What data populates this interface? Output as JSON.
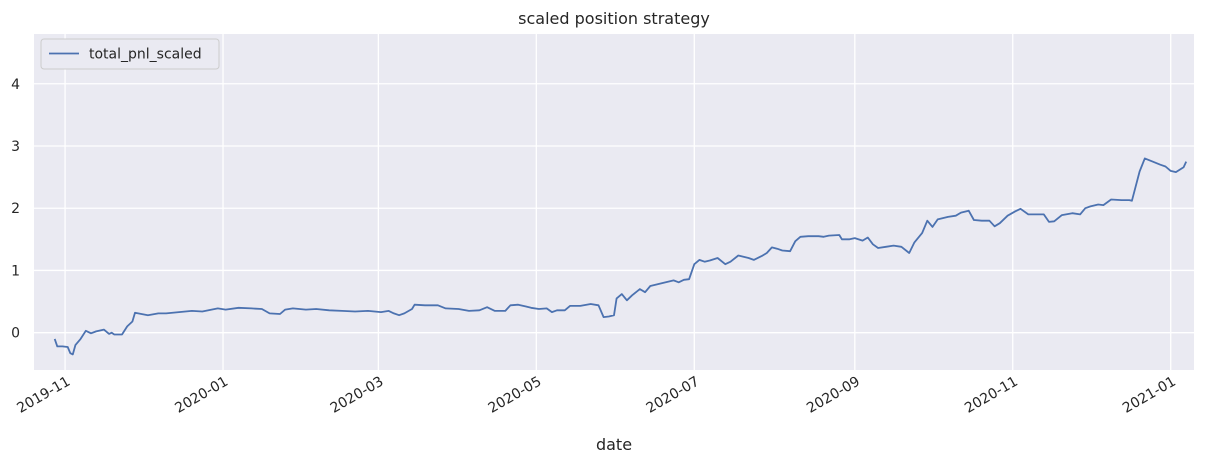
{
  "chart_data": {
    "type": "line",
    "title": "scaled position strategy",
    "xlabel": "date",
    "ylabel": "",
    "xlim": [
      "2019-10-20",
      "2021-01-10"
    ],
    "ylim": [
      -0.6,
      4.8
    ],
    "grid": true,
    "legend_position": "top-left",
    "x_ticks": [
      {
        "date": "2019-11-01",
        "label": "2019-11"
      },
      {
        "date": "2020-01-01",
        "label": "2020-01"
      },
      {
        "date": "2020-03-01",
        "label": "2020-03"
      },
      {
        "date": "2020-05-01",
        "label": "2020-05"
      },
      {
        "date": "2020-07-01",
        "label": "2020-07"
      },
      {
        "date": "2020-09-01",
        "label": "2020-09"
      },
      {
        "date": "2020-11-01",
        "label": "2020-11"
      },
      {
        "date": "2021-01-01",
        "label": "2021-01"
      }
    ],
    "y_ticks": [
      0,
      1,
      2,
      3,
      4
    ],
    "series": [
      {
        "name": "total_pnl_scaled",
        "color": "#4c72b0",
        "points": [
          [
            "2019-10-28",
            -0.1
          ],
          [
            "2019-10-29",
            -0.22
          ],
          [
            "2019-10-31",
            -0.22
          ],
          [
            "2019-11-02",
            -0.23
          ],
          [
            "2019-11-03",
            -0.33
          ],
          [
            "2019-11-04",
            -0.35
          ],
          [
            "2019-11-05",
            -0.2
          ],
          [
            "2019-11-07",
            -0.1
          ],
          [
            "2019-11-09",
            0.03
          ],
          [
            "2019-11-11",
            -0.01
          ],
          [
            "2019-11-13",
            0.02
          ],
          [
            "2019-11-16",
            0.05
          ],
          [
            "2019-11-18",
            -0.02
          ],
          [
            "2019-11-19",
            0.0
          ],
          [
            "2019-11-20",
            -0.03
          ],
          [
            "2019-11-23",
            -0.03
          ],
          [
            "2019-11-25",
            0.1
          ],
          [
            "2019-11-27",
            0.18
          ],
          [
            "2019-11-28",
            0.32
          ],
          [
            "2019-12-03",
            0.28
          ],
          [
            "2019-12-07",
            0.31
          ],
          [
            "2019-12-10",
            0.31
          ],
          [
            "2019-12-15",
            0.33
          ],
          [
            "2019-12-20",
            0.35
          ],
          [
            "2019-12-24",
            0.34
          ],
          [
            "2019-12-30",
            0.39
          ],
          [
            "2020-01-02",
            0.37
          ],
          [
            "2020-01-07",
            0.4
          ],
          [
            "2020-01-12",
            0.39
          ],
          [
            "2020-01-16",
            0.38
          ],
          [
            "2020-01-19",
            0.31
          ],
          [
            "2020-01-23",
            0.3
          ],
          [
            "2020-01-25",
            0.37
          ],
          [
            "2020-01-28",
            0.39
          ],
          [
            "2020-02-02",
            0.37
          ],
          [
            "2020-02-06",
            0.38
          ],
          [
            "2020-02-11",
            0.36
          ],
          [
            "2020-02-16",
            0.35
          ],
          [
            "2020-02-21",
            0.34
          ],
          [
            "2020-02-26",
            0.35
          ],
          [
            "2020-03-02",
            0.33
          ],
          [
            "2020-03-05",
            0.35
          ],
          [
            "2020-03-07",
            0.31
          ],
          [
            "2020-03-09",
            0.28
          ],
          [
            "2020-03-11",
            0.31
          ],
          [
            "2020-03-14",
            0.38
          ],
          [
            "2020-03-15",
            0.45
          ],
          [
            "2020-03-19",
            0.44
          ],
          [
            "2020-03-24",
            0.44
          ],
          [
            "2020-03-27",
            0.39
          ],
          [
            "2020-04-01",
            0.38
          ],
          [
            "2020-04-05",
            0.35
          ],
          [
            "2020-04-09",
            0.36
          ],
          [
            "2020-04-12",
            0.41
          ],
          [
            "2020-04-15",
            0.35
          ],
          [
            "2020-04-19",
            0.35
          ],
          [
            "2020-04-21",
            0.44
          ],
          [
            "2020-04-24",
            0.45
          ],
          [
            "2020-04-27",
            0.42
          ],
          [
            "2020-04-29",
            0.4
          ],
          [
            "2020-05-02",
            0.38
          ],
          [
            "2020-05-05",
            0.39
          ],
          [
            "2020-05-07",
            0.33
          ],
          [
            "2020-05-09",
            0.36
          ],
          [
            "2020-05-12",
            0.36
          ],
          [
            "2020-05-14",
            0.43
          ],
          [
            "2020-05-18",
            0.43
          ],
          [
            "2020-05-22",
            0.46
          ],
          [
            "2020-05-25",
            0.44
          ],
          [
            "2020-05-27",
            0.25
          ],
          [
            "2020-05-29",
            0.26
          ],
          [
            "2020-05-31",
            0.28
          ],
          [
            "2020-06-01",
            0.55
          ],
          [
            "2020-06-03",
            0.62
          ],
          [
            "2020-06-05",
            0.52
          ],
          [
            "2020-06-07",
            0.6
          ],
          [
            "2020-06-10",
            0.7
          ],
          [
            "2020-06-12",
            0.65
          ],
          [
            "2020-06-14",
            0.75
          ],
          [
            "2020-06-19",
            0.8
          ],
          [
            "2020-06-23",
            0.84
          ],
          [
            "2020-06-25",
            0.81
          ],
          [
            "2020-06-27",
            0.85
          ],
          [
            "2020-06-29",
            0.86
          ],
          [
            "2020-07-01",
            1.1
          ],
          [
            "2020-07-03",
            1.17
          ],
          [
            "2020-07-05",
            1.14
          ],
          [
            "2020-07-07",
            1.16
          ],
          [
            "2020-07-10",
            1.2
          ],
          [
            "2020-07-13",
            1.1
          ],
          [
            "2020-07-15",
            1.14
          ],
          [
            "2020-07-18",
            1.24
          ],
          [
            "2020-07-22",
            1.2
          ],
          [
            "2020-07-24",
            1.17
          ],
          [
            "2020-07-27",
            1.23
          ],
          [
            "2020-07-29",
            1.28
          ],
          [
            "2020-07-31",
            1.37
          ],
          [
            "2020-08-02",
            1.35
          ],
          [
            "2020-08-04",
            1.32
          ],
          [
            "2020-08-07",
            1.31
          ],
          [
            "2020-08-09",
            1.47
          ],
          [
            "2020-08-11",
            1.54
          ],
          [
            "2020-08-14",
            1.55
          ],
          [
            "2020-08-18",
            1.55
          ],
          [
            "2020-08-20",
            1.54
          ],
          [
            "2020-08-22",
            1.56
          ],
          [
            "2020-08-26",
            1.57
          ],
          [
            "2020-08-27",
            1.5
          ],
          [
            "2020-08-30",
            1.5
          ],
          [
            "2020-09-01",
            1.52
          ],
          [
            "2020-09-04",
            1.48
          ],
          [
            "2020-09-06",
            1.53
          ],
          [
            "2020-09-08",
            1.42
          ],
          [
            "2020-09-10",
            1.36
          ],
          [
            "2020-09-13",
            1.38
          ],
          [
            "2020-09-16",
            1.4
          ],
          [
            "2020-09-19",
            1.38
          ],
          [
            "2020-09-22",
            1.28
          ],
          [
            "2020-09-24",
            1.45
          ],
          [
            "2020-09-27",
            1.6
          ],
          [
            "2020-09-29",
            1.8
          ],
          [
            "2020-10-01",
            1.7
          ],
          [
            "2020-10-03",
            1.82
          ],
          [
            "2020-10-07",
            1.86
          ],
          [
            "2020-10-10",
            1.88
          ],
          [
            "2020-10-12",
            1.93
          ],
          [
            "2020-10-15",
            1.96
          ],
          [
            "2020-10-17",
            1.81
          ],
          [
            "2020-10-20",
            1.8
          ],
          [
            "2020-10-23",
            1.8
          ],
          [
            "2020-10-25",
            1.71
          ],
          [
            "2020-10-27",
            1.76
          ],
          [
            "2020-10-30",
            1.88
          ],
          [
            "2020-11-02",
            1.95
          ],
          [
            "2020-11-04",
            1.99
          ],
          [
            "2020-11-07",
            1.9
          ],
          [
            "2020-11-11",
            1.9
          ],
          [
            "2020-11-13",
            1.9
          ],
          [
            "2020-11-15",
            1.78
          ],
          [
            "2020-11-17",
            1.79
          ],
          [
            "2020-11-20",
            1.89
          ],
          [
            "2020-11-24",
            1.92
          ],
          [
            "2020-11-27",
            1.9
          ],
          [
            "2020-11-29",
            2.0
          ],
          [
            "2020-12-01",
            2.03
          ],
          [
            "2020-12-04",
            2.06
          ],
          [
            "2020-12-06",
            2.05
          ],
          [
            "2020-12-09",
            2.14
          ],
          [
            "2020-12-13",
            2.13
          ],
          [
            "2020-12-16",
            2.13
          ],
          [
            "2020-12-17",
            2.12
          ],
          [
            "2020-12-20",
            2.59
          ],
          [
            "2020-12-22",
            2.8
          ],
          [
            "2020-12-25",
            2.75
          ],
          [
            "2020-12-28",
            2.7
          ],
          [
            "2020-12-30",
            2.67
          ],
          [
            "2021-01-01",
            2.6
          ],
          [
            "2021-01-03",
            2.58
          ],
          [
            "2021-01-06",
            2.66
          ],
          [
            "2021-01-07",
            2.75
          ]
        ]
      }
    ]
  }
}
